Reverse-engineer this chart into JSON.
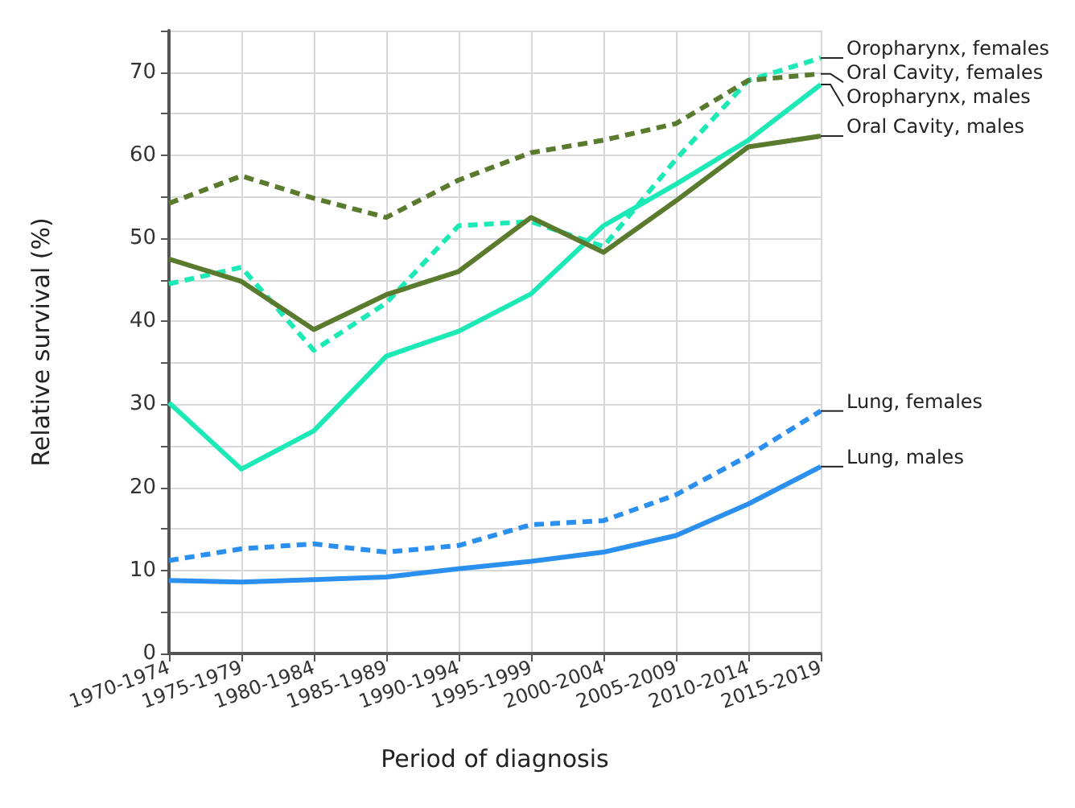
{
  "chart_data": {
    "type": "line",
    "xlabel": "Period of diagnosis",
    "ylabel": "Relative survival (%)",
    "categories": [
      "1970-1974",
      "1975-1979",
      "1980-1984",
      "1985-1989",
      "1990-1994",
      "1995-1999",
      "2000-2004",
      "2005-2009",
      "2010-2014",
      "2015-2019"
    ],
    "ylim": [
      0,
      75
    ],
    "yticks": [
      0,
      {
        "value": 5,
        "label": null
      },
      10,
      {
        "value": 15,
        "label": null
      },
      20,
      {
        "value": 25,
        "label": null
      },
      30,
      {
        "value": 35,
        "label": null
      },
      40,
      {
        "value": 45,
        "label": null
      },
      50,
      {
        "value": 55,
        "label": null
      },
      60,
      {
        "value": 65,
        "label": null
      },
      70,
      {
        "value": 75,
        "label": null
      }
    ],
    "grid": true,
    "legend": "right",
    "marker": "none",
    "series": [
      {
        "name": "Oropharynx, females",
        "color": "#1de9b6",
        "line_style": "dashed",
        "values": [
          44.5,
          46.5,
          36.5,
          42.2,
          51.5,
          52,
          49,
          59.5,
          69,
          71.7
        ]
      },
      {
        "name": "Oral Cavity, females",
        "color": "#5a7a2e",
        "line_style": "dashed",
        "values": [
          54.2,
          57.5,
          54.8,
          52.5,
          57,
          60.3,
          61.8,
          63.8,
          69,
          69.8
        ]
      },
      {
        "name": "Oropharynx, males",
        "color": "#1de9b6",
        "line_style": "solid",
        "values": [
          30.2,
          22.2,
          26.8,
          35.8,
          38.8,
          43.3,
          51.5,
          56.5,
          61.8,
          68.5
        ]
      },
      {
        "name": "Oral Cavity, males",
        "color": "#5a7a2e",
        "line_style": "solid",
        "values": [
          47.5,
          44.8,
          39,
          43.2,
          46,
          52.5,
          48.3,
          54.5,
          61,
          62.3
        ]
      },
      {
        "name": "Lung, females",
        "color": "#2b8fef",
        "line_style": "dashed",
        "values": [
          11.2,
          12.6,
          13.2,
          12.2,
          13,
          15.5,
          16,
          19.1,
          23.8,
          29.2
        ]
      },
      {
        "name": "Lung, males",
        "color": "#2b8fef",
        "line_style": "solid",
        "values": [
          8.8,
          8.6,
          8.9,
          9.2,
          10.2,
          11.1,
          12.2,
          14.2,
          18,
          22.5
        ]
      }
    ]
  }
}
